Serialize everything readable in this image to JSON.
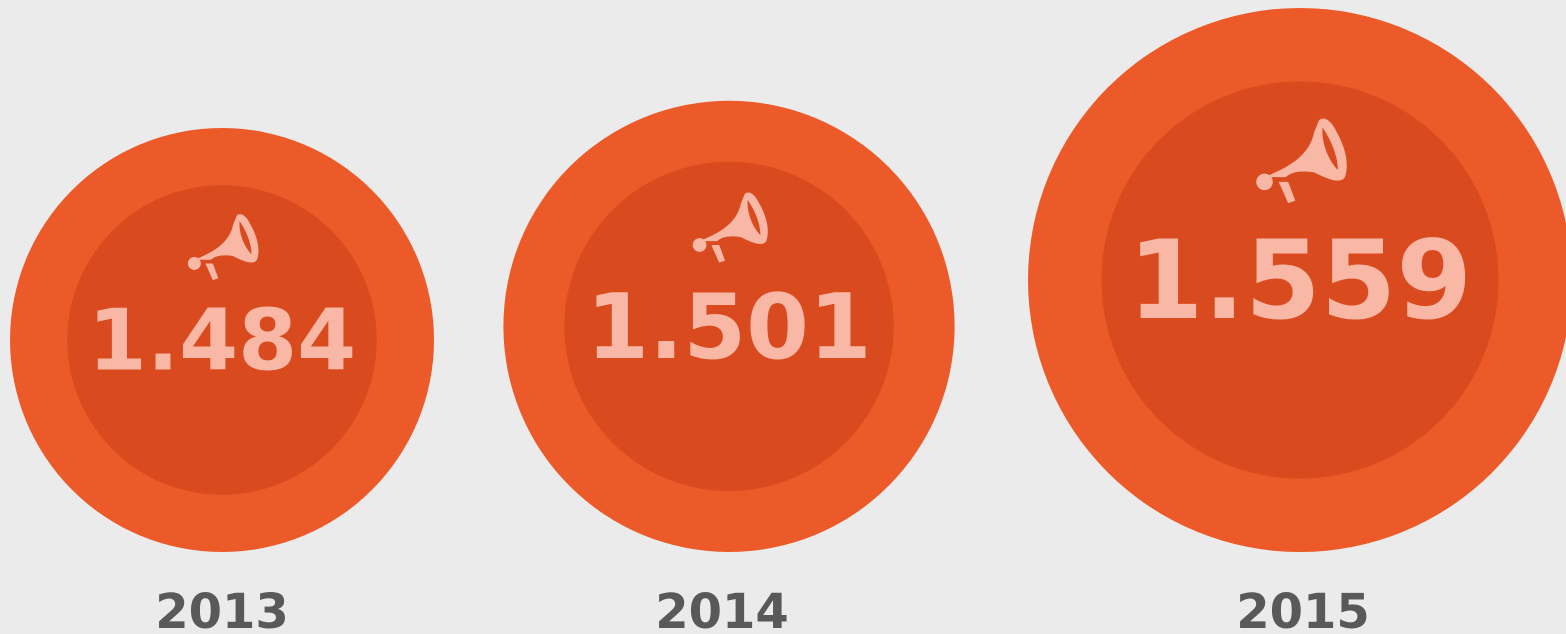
{
  "chart_data": {
    "type": "bubble",
    "categories": [
      "2013",
      "2014",
      "2015"
    ],
    "values": [
      1484,
      1501,
      1559
    ],
    "value_labels": [
      "1.484",
      "1.501",
      "1.559"
    ],
    "outer_color": "#ec5a29",
    "inner_color": "#da4a1f",
    "label_color": "#f9b7a6"
  }
}
